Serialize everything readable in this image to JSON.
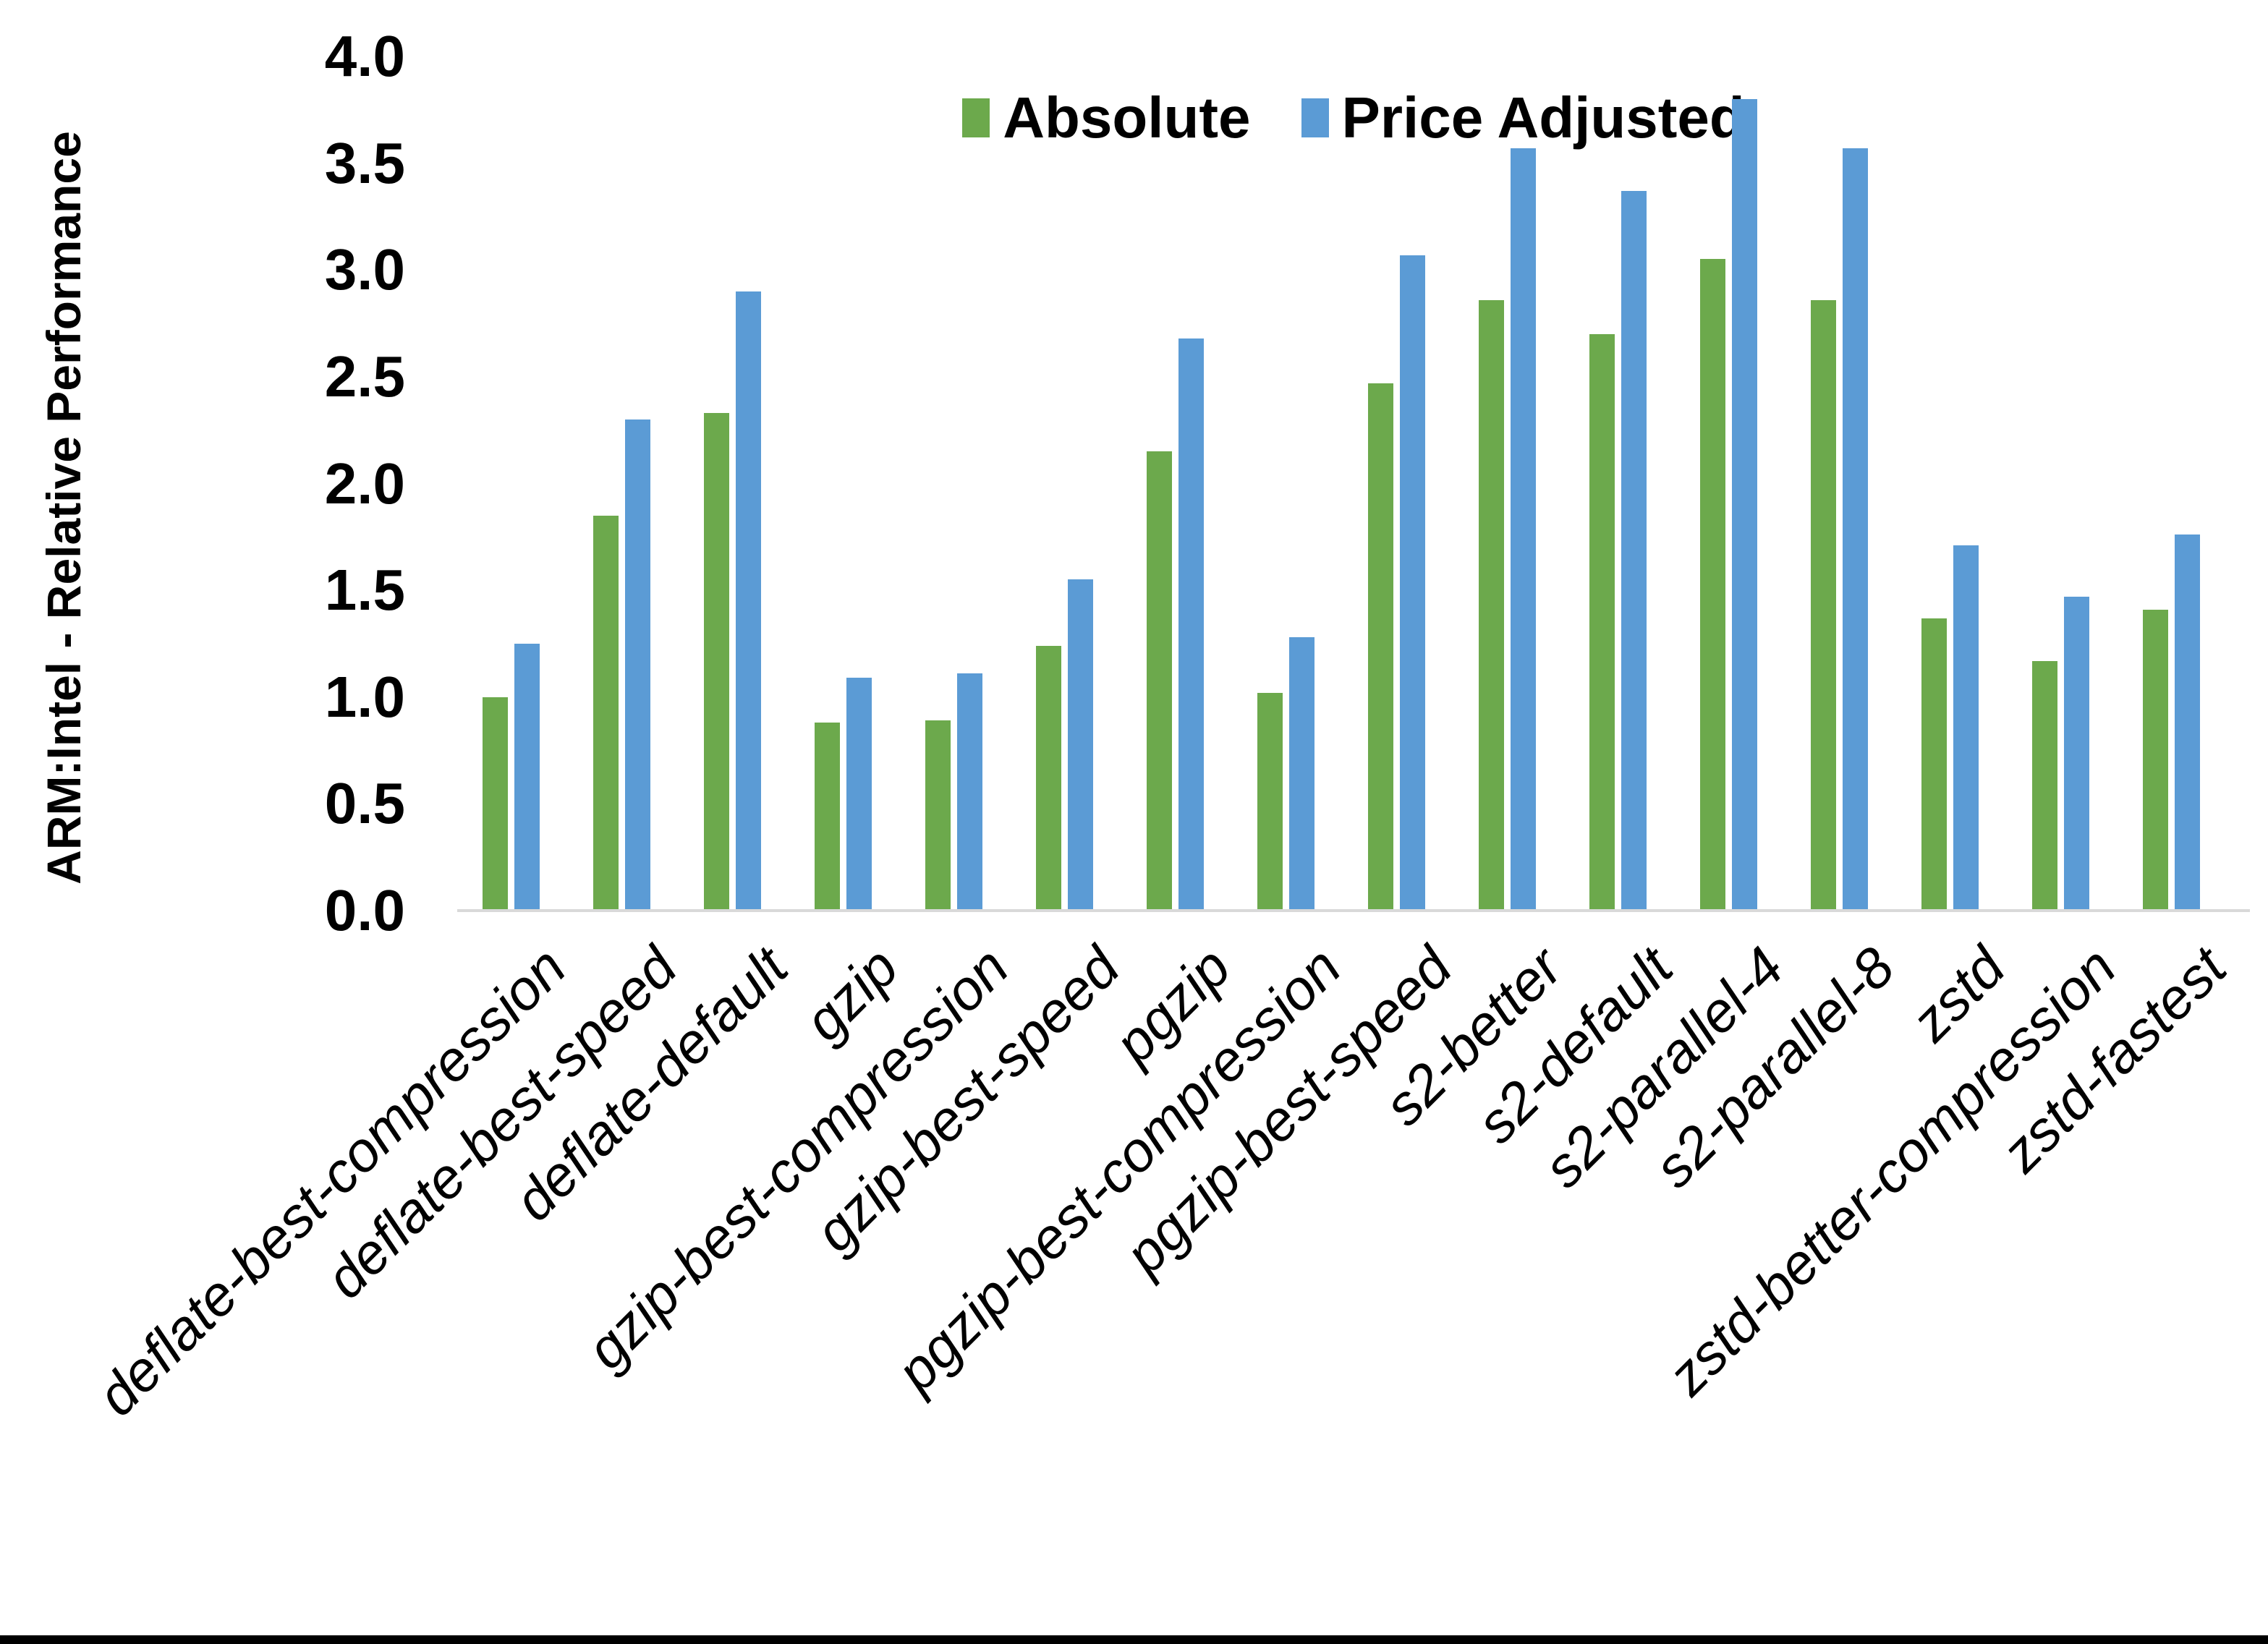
{
  "chart_data": {
    "type": "bar",
    "title": "",
    "xlabel": "",
    "ylabel": "ARM:Intel - Relative Performance",
    "ylim": [
      0.0,
      4.0
    ],
    "ytick_step": 0.5,
    "yticks": [
      "4.0",
      "3.5",
      "3.0",
      "2.5",
      "2.0",
      "1.5",
      "1.0",
      "0.5",
      "0.0"
    ],
    "grid": false,
    "legend_position": "top-center",
    "categories": [
      "deflate-best-compression",
      "deflate-best-speed",
      "deflate-default",
      "gzip",
      "gzip-best-compression",
      "gzip-best-speed",
      "pgzip",
      "pgzip-best-compression",
      "pgzip-best-speed",
      "s2-better",
      "s2-default",
      "s2-parallel-4",
      "s2-parallel-8",
      "zstd",
      "zstd-better-compression",
      "zstd-fastest"
    ],
    "series": [
      {
        "name": "Absolute",
        "color": "#6CA94C",
        "values": [
          1.0,
          1.85,
          2.33,
          0.88,
          0.89,
          1.24,
          2.15,
          1.02,
          2.47,
          2.86,
          2.7,
          3.05,
          2.86,
          1.37,
          1.17,
          1.41
        ]
      },
      {
        "name": "Price Adjusted",
        "color": "#5B9BD5",
        "values": [
          1.25,
          2.3,
          2.9,
          1.09,
          1.11,
          1.55,
          2.68,
          1.28,
          3.07,
          3.57,
          3.37,
          3.8,
          3.57,
          1.71,
          1.47,
          1.76
        ]
      }
    ]
  },
  "colors": {
    "background": "#FFFFFF",
    "axis_line": "#D9D9D9",
    "text": "#000000",
    "bottom_border": "#000000"
  }
}
